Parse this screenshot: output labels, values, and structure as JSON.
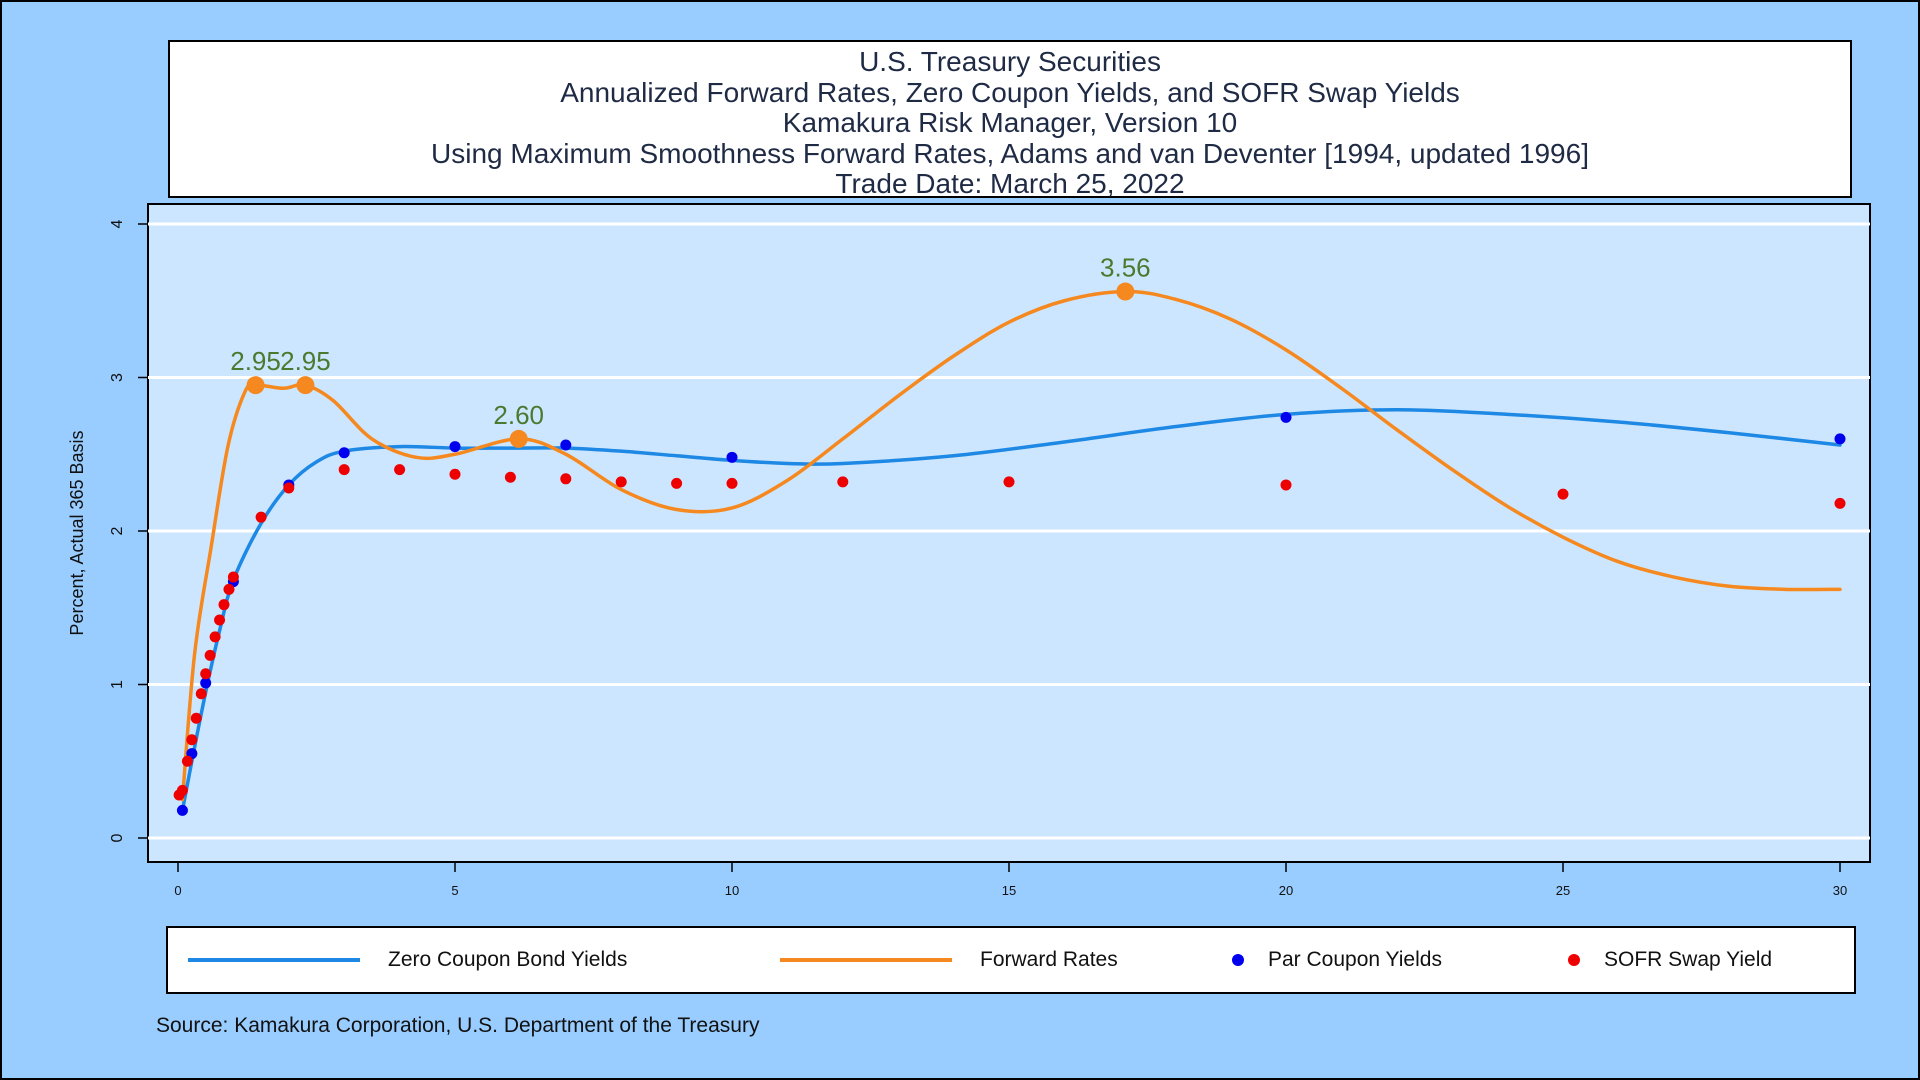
{
  "title_lines": [
    "U.S. Treasury Securities",
    "Annualized Forward Rates, Zero Coupon Yields, and SOFR Swap Yields",
    "Kamakura Risk Manager, Version 10",
    "Using Maximum Smoothness Forward Rates, Adams and van Deventer [1994, updated 1996]",
    "Trade Date: March 25, 2022"
  ],
  "source": "Source: Kamakura Corporation, U.S. Department of the Treasury",
  "legend": {
    "zero": "Zero Coupon Bond Yields",
    "forward": "Forward Rates",
    "par": "Par Coupon Yields",
    "sofr": "SOFR Swap Yield"
  },
  "colors": {
    "frame_bg": "#99ccff",
    "plot_bg": "#cce6ff",
    "zero": "#1e88e5",
    "forward": "#f5891f",
    "par": "#0000ee",
    "sofr": "#ee0000",
    "annotation": "#4a7a2e"
  },
  "chart_data": {
    "type": "line",
    "ylabel": "Percent, Actual 365 Basis",
    "xlabel": "",
    "xlim": [
      0,
      30
    ],
    "ylim": [
      0,
      4
    ],
    "xticks": [
      0,
      5,
      10,
      15,
      20,
      25,
      30
    ],
    "yticks": [
      0,
      1,
      2,
      3,
      4
    ],
    "grid": true,
    "legend_position": "bottom",
    "series": [
      {
        "name": "Zero Coupon Bond Yields",
        "kind": "line",
        "points": [
          [
            0.08,
            0.18
          ],
          [
            0.25,
            0.5
          ],
          [
            0.5,
            0.95
          ],
          [
            0.75,
            1.35
          ],
          [
            1,
            1.68
          ],
          [
            1.5,
            2.05
          ],
          [
            2,
            2.3
          ],
          [
            2.5,
            2.45
          ],
          [
            3,
            2.52
          ],
          [
            4,
            2.55
          ],
          [
            5,
            2.54
          ],
          [
            6,
            2.54
          ],
          [
            7,
            2.54
          ],
          [
            8,
            2.52
          ],
          [
            9,
            2.49
          ],
          [
            10,
            2.46
          ],
          [
            11,
            2.44
          ],
          [
            12,
            2.44
          ],
          [
            14,
            2.49
          ],
          [
            16,
            2.58
          ],
          [
            18,
            2.68
          ],
          [
            20,
            2.76
          ],
          [
            22,
            2.79
          ],
          [
            24,
            2.76
          ],
          [
            26,
            2.71
          ],
          [
            28,
            2.64
          ],
          [
            30,
            2.56
          ]
        ]
      },
      {
        "name": "Forward Rates",
        "kind": "line",
        "points": [
          [
            0.08,
            0.25
          ],
          [
            0.3,
            1.2
          ],
          [
            0.6,
            1.9
          ],
          [
            0.9,
            2.55
          ],
          [
            1.2,
            2.9
          ],
          [
            1.4,
            2.95
          ],
          [
            1.9,
            2.93
          ],
          [
            2.3,
            2.95
          ],
          [
            2.8,
            2.85
          ],
          [
            3.5,
            2.6
          ],
          [
            4.3,
            2.48
          ],
          [
            5,
            2.5
          ],
          [
            6.15,
            2.6
          ],
          [
            7,
            2.5
          ],
          [
            8,
            2.27
          ],
          [
            9,
            2.14
          ],
          [
            10,
            2.15
          ],
          [
            11,
            2.33
          ],
          [
            12,
            2.6
          ],
          [
            13,
            2.88
          ],
          [
            14,
            3.14
          ],
          [
            15,
            3.36
          ],
          [
            16,
            3.5
          ],
          [
            17.1,
            3.56
          ],
          [
            18,
            3.51
          ],
          [
            19,
            3.38
          ],
          [
            20,
            3.18
          ],
          [
            21,
            2.93
          ],
          [
            22,
            2.66
          ],
          [
            23,
            2.4
          ],
          [
            24,
            2.16
          ],
          [
            25,
            1.96
          ],
          [
            26,
            1.8
          ],
          [
            27,
            1.7
          ],
          [
            28,
            1.64
          ],
          [
            29,
            1.62
          ],
          [
            30,
            1.62
          ]
        ]
      },
      {
        "name": "Par Coupon Yields",
        "kind": "scatter",
        "points": [
          [
            0.08,
            0.18
          ],
          [
            0.25,
            0.55
          ],
          [
            0.5,
            1.01
          ],
          [
            1,
            1.67
          ],
          [
            2,
            2.3
          ],
          [
            3,
            2.51
          ],
          [
            5,
            2.55
          ],
          [
            7,
            2.56
          ],
          [
            10,
            2.48
          ],
          [
            20,
            2.74
          ],
          [
            30,
            2.6
          ]
        ]
      },
      {
        "name": "SOFR Swap Yield",
        "kind": "scatter",
        "points": [
          [
            0.02,
            0.28
          ],
          [
            0.08,
            0.31
          ],
          [
            0.17,
            0.5
          ],
          [
            0.25,
            0.64
          ],
          [
            0.33,
            0.78
          ],
          [
            0.42,
            0.94
          ],
          [
            0.5,
            1.07
          ],
          [
            0.58,
            1.19
          ],
          [
            0.67,
            1.31
          ],
          [
            0.75,
            1.42
          ],
          [
            0.83,
            1.52
          ],
          [
            0.92,
            1.62
          ],
          [
            1,
            1.7
          ],
          [
            1.5,
            2.09
          ],
          [
            2,
            2.28
          ],
          [
            3,
            2.4
          ],
          [
            4,
            2.4
          ],
          [
            5,
            2.37
          ],
          [
            6,
            2.35
          ],
          [
            7,
            2.34
          ],
          [
            8,
            2.32
          ],
          [
            9,
            2.31
          ],
          [
            10,
            2.31
          ],
          [
            12,
            2.32
          ],
          [
            15,
            2.32
          ],
          [
            20,
            2.3
          ],
          [
            25,
            2.24
          ],
          [
            30,
            2.18
          ]
        ]
      }
    ],
    "annotations": [
      {
        "x": 1.4,
        "y": 2.95,
        "label": "2.95"
      },
      {
        "x": 2.3,
        "y": 2.95,
        "label": "2.95"
      },
      {
        "x": 6.15,
        "y": 2.6,
        "label": "2.60"
      },
      {
        "x": 17.1,
        "y": 3.56,
        "label": "3.56"
      }
    ]
  }
}
